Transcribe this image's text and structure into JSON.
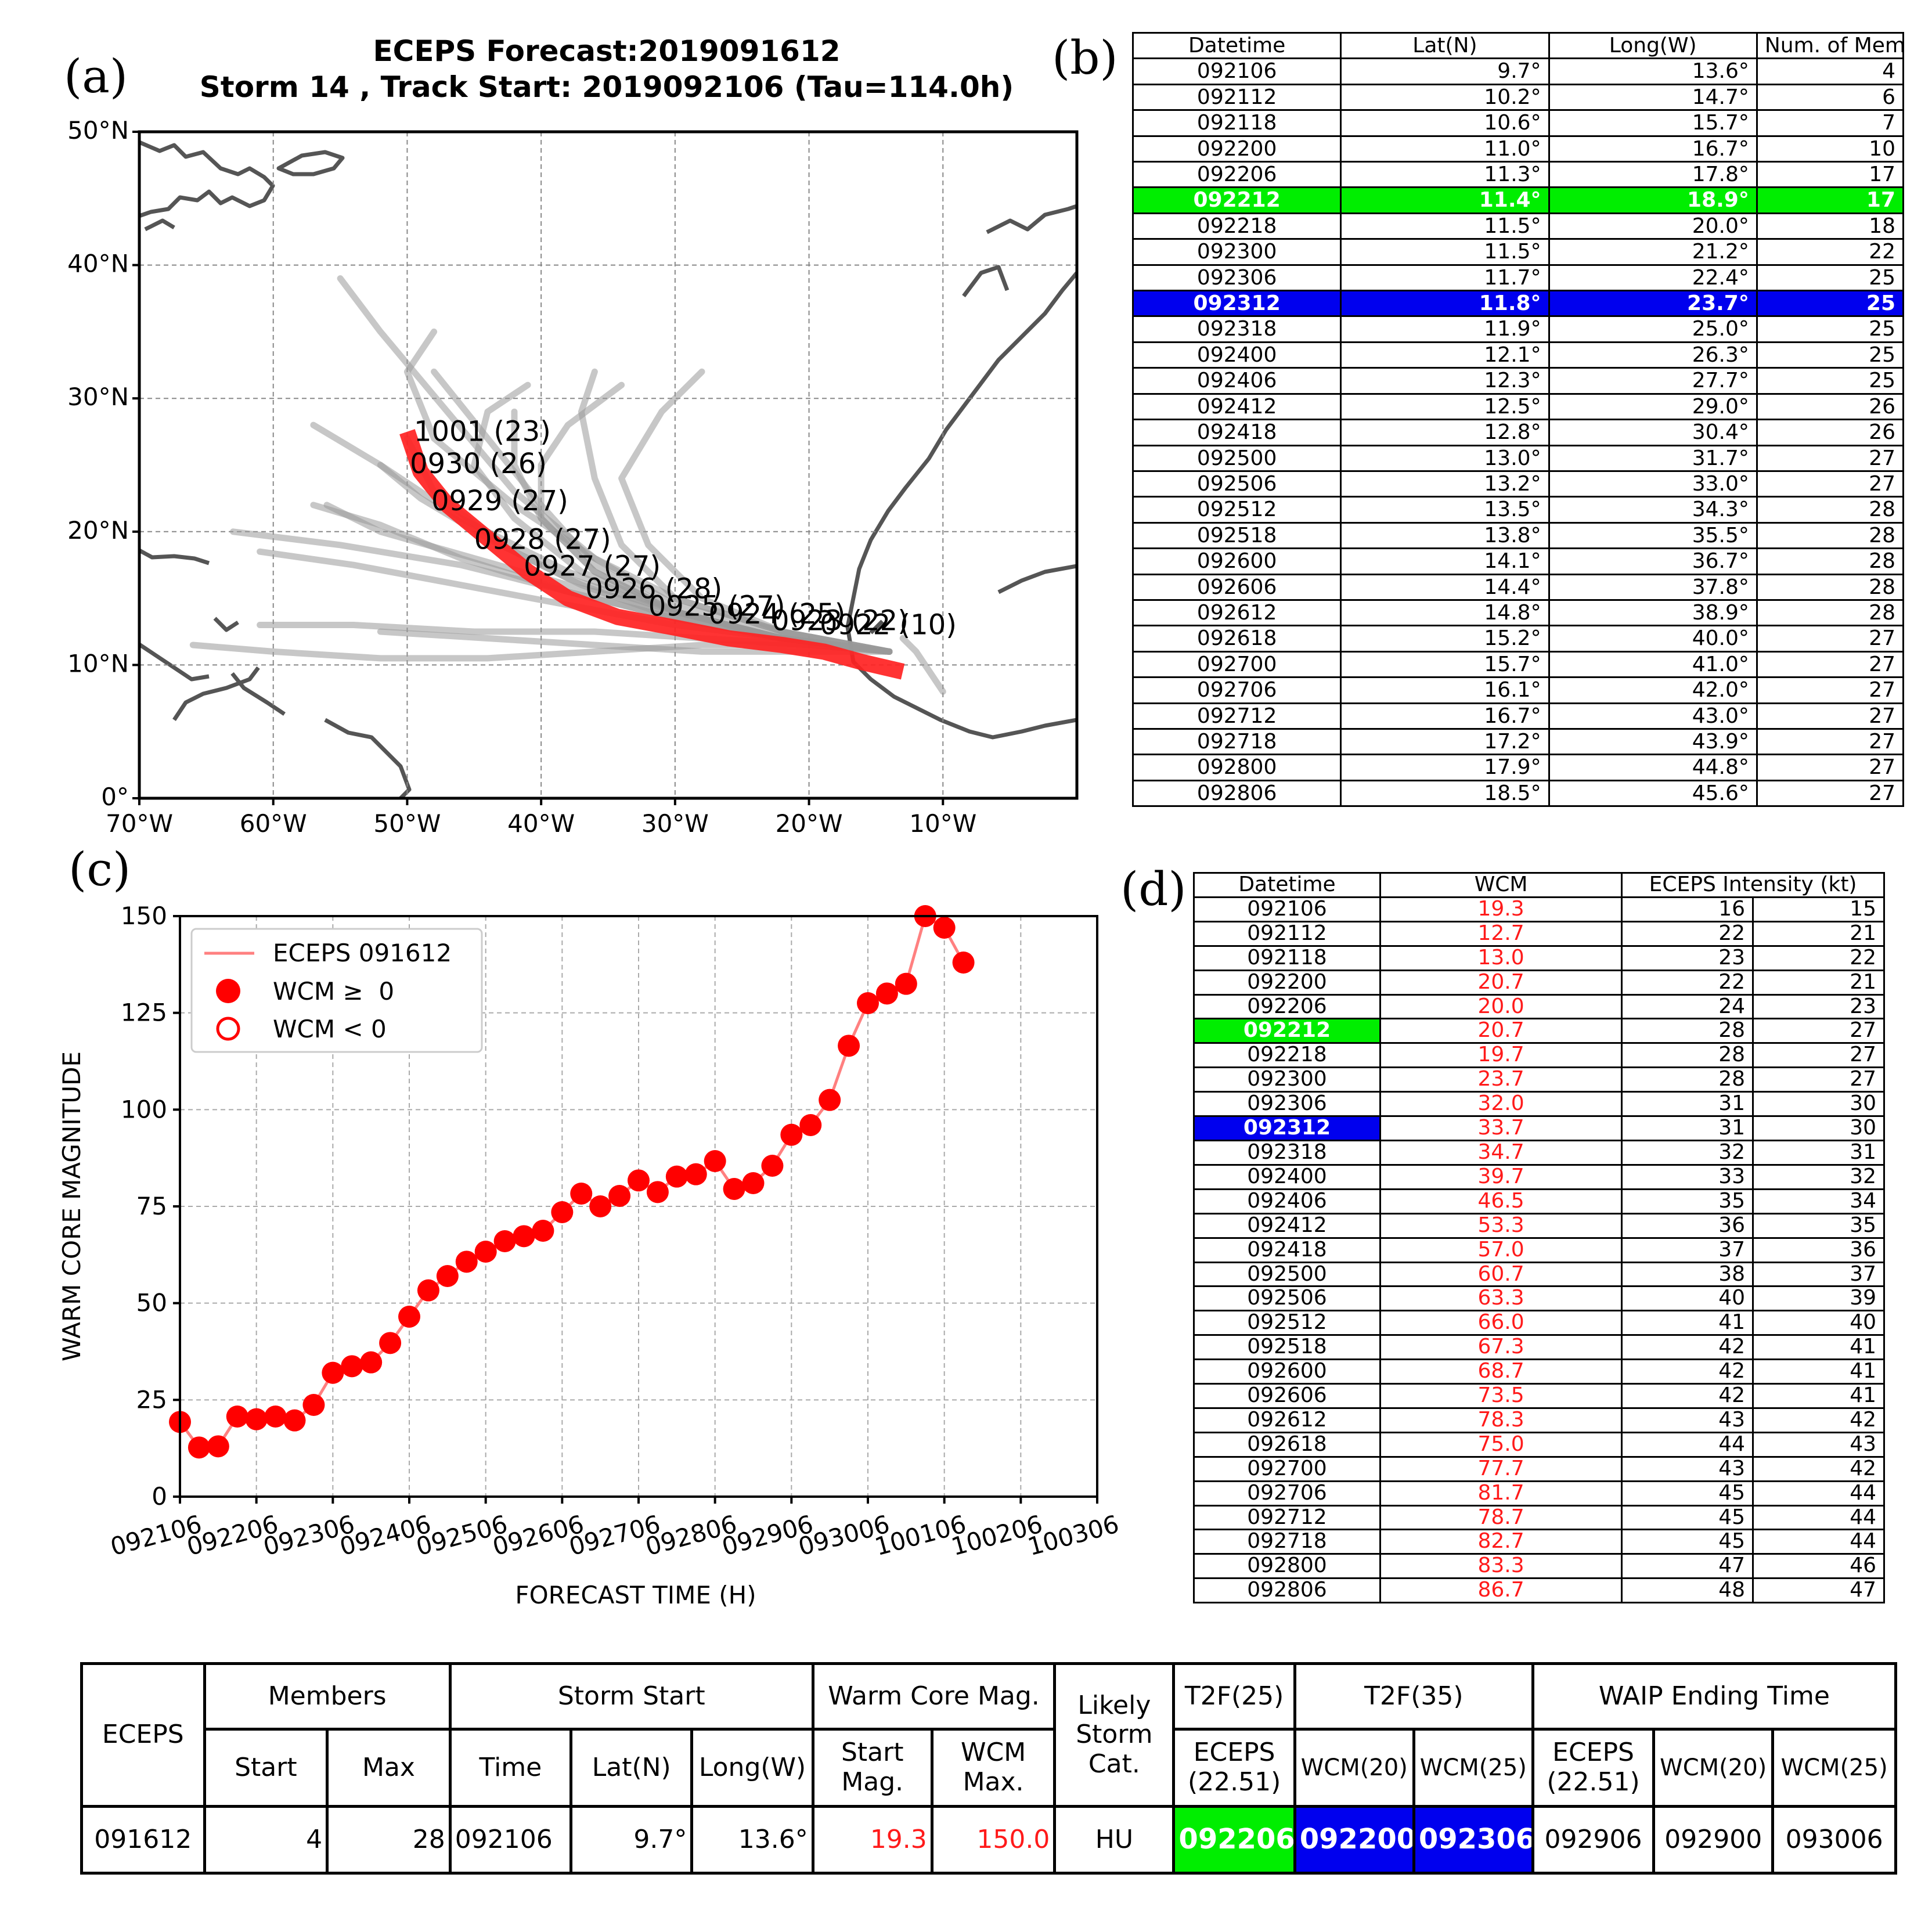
{
  "panel_labels": {
    "a": "(a)",
    "b": "(b)",
    "c": "(c)",
    "d": "(d)"
  },
  "chart_data": [
    {
      "type": "map",
      "panel": "a",
      "title": "ECEPS Forecast:2019091612",
      "subtitle": "Storm 14 , Track Start: 2019092106 (Tau=114.0h)",
      "x_ticks": [
        "70°W",
        "60°W",
        "50°W",
        "40°W",
        "30°W",
        "20°W",
        "10°W"
      ],
      "y_ticks": [
        "0°",
        "10°N",
        "20°N",
        "30°N",
        "40°N",
        "50°N"
      ],
      "lon_range": [
        -70,
        0
      ],
      "lat_range": [
        0,
        50
      ],
      "mean_track": [
        [
          -13,
          9.5
        ],
        [
          -16,
          10.2
        ],
        [
          -18.9,
          11.0
        ],
        [
          -22,
          11.5
        ],
        [
          -26,
          12.0
        ],
        [
          -30,
          12.8
        ],
        [
          -34.3,
          13.6
        ],
        [
          -38,
          15.0
        ],
        [
          -41,
          17.0
        ],
        [
          -44,
          19.5
        ],
        [
          -47,
          22.0
        ],
        [
          -49,
          24.5
        ],
        [
          -49.5,
          26.0
        ],
        [
          -50,
          27.5
        ]
      ],
      "member_tracks": [
        [
          [
            -14,
            11
          ],
          [
            -20,
            11.5
          ],
          [
            -28,
            11.5
          ],
          [
            -36,
            11
          ],
          [
            -44,
            10.5
          ],
          [
            -52,
            10.5
          ],
          [
            -60,
            11
          ],
          [
            -66,
            11.5
          ]
        ],
        [
          [
            -14,
            11
          ],
          [
            -20,
            11.5
          ],
          [
            -28,
            12
          ],
          [
            -36,
            12.5
          ],
          [
            -45,
            12.5
          ],
          [
            -54,
            13
          ],
          [
            -61,
            13
          ]
        ],
        [
          [
            -14,
            11
          ],
          [
            -22,
            12
          ],
          [
            -30,
            13
          ],
          [
            -38,
            14.5
          ],
          [
            -46,
            16
          ],
          [
            -54,
            17.5
          ],
          [
            -61,
            18.5
          ]
        ],
        [
          [
            -14,
            11
          ],
          [
            -22,
            12
          ],
          [
            -30,
            13.5
          ],
          [
            -38,
            15.5
          ],
          [
            -46,
            18
          ],
          [
            -52,
            20.5
          ],
          [
            -57,
            22
          ]
        ],
        [
          [
            -14,
            11
          ],
          [
            -22,
            12
          ],
          [
            -30,
            14
          ],
          [
            -38,
            16.5
          ],
          [
            -44,
            19.5
          ],
          [
            -49,
            22.5
          ],
          [
            -52,
            25
          ]
        ],
        [
          [
            -14,
            11
          ],
          [
            -22,
            12
          ],
          [
            -30,
            14
          ],
          [
            -36,
            17
          ],
          [
            -40,
            21
          ],
          [
            -42,
            25
          ],
          [
            -42,
            29
          ]
        ],
        [
          [
            -14,
            11
          ],
          [
            -22,
            12
          ],
          [
            -30,
            14
          ],
          [
            -36,
            17.5
          ],
          [
            -40,
            22
          ],
          [
            -44,
            27
          ],
          [
            -48,
            32
          ]
        ],
        [
          [
            -14,
            11
          ],
          [
            -22,
            12.5
          ],
          [
            -30,
            14.5
          ],
          [
            -36,
            18
          ],
          [
            -42,
            23
          ],
          [
            -47,
            29
          ],
          [
            -52,
            35
          ],
          [
            -55,
            39
          ]
        ],
        [
          [
            -14,
            11
          ],
          [
            -22,
            12.5
          ],
          [
            -30,
            15
          ],
          [
            -34,
            19
          ],
          [
            -36,
            24
          ],
          [
            -37,
            29
          ],
          [
            -36,
            32
          ]
        ],
        [
          [
            -14,
            11
          ],
          [
            -22,
            12.5
          ],
          [
            -28,
            15
          ],
          [
            -32,
            19
          ],
          [
            -34,
            24
          ],
          [
            -31,
            29
          ],
          [
            -28,
            32
          ]
        ],
        [
          [
            -14,
            11
          ],
          [
            -22,
            12.5
          ],
          [
            -30,
            15
          ],
          [
            -36,
            18
          ],
          [
            -42,
            22
          ],
          [
            -48,
            27
          ],
          [
            -50,
            32
          ],
          [
            -48,
            35
          ]
        ],
        [
          [
            -14,
            11
          ],
          [
            -22,
            12
          ],
          [
            -30,
            14
          ],
          [
            -38,
            16
          ],
          [
            -45,
            18
          ],
          [
            -52,
            20
          ],
          [
            -56,
            22
          ]
        ],
        [
          [
            -14,
            11
          ],
          [
            -22,
            12
          ],
          [
            -30,
            14
          ],
          [
            -38,
            17
          ],
          [
            -46,
            21
          ],
          [
            -52,
            25
          ],
          [
            -57,
            28
          ]
        ],
        [
          [
            -14,
            11
          ],
          [
            -22,
            12
          ],
          [
            -30,
            13.5
          ],
          [
            -38,
            15.5
          ],
          [
            -46,
            17.5
          ],
          [
            -55,
            19
          ],
          [
            -63,
            20
          ]
        ],
        [
          [
            -14,
            11
          ],
          [
            -22,
            12
          ],
          [
            -30,
            14
          ],
          [
            -37,
            17
          ],
          [
            -42,
            21
          ],
          [
            -45,
            25
          ],
          [
            -44,
            29
          ],
          [
            -41,
            31
          ]
        ],
        [
          [
            -14,
            11
          ],
          [
            -22,
            12
          ],
          [
            -30,
            14
          ],
          [
            -36,
            17
          ],
          [
            -40,
            21
          ],
          [
            -40,
            25
          ],
          [
            -38,
            28
          ],
          [
            -34,
            31
          ]
        ],
        [
          [
            -14,
            11
          ],
          [
            -22,
            12
          ],
          [
            -30,
            13.5
          ],
          [
            -37,
            16
          ],
          [
            -43,
            19
          ],
          [
            -48,
            23
          ],
          [
            -50,
            27
          ]
        ],
        [
          [
            -14,
            11
          ],
          [
            -20,
            11
          ],
          [
            -28,
            11
          ],
          [
            -36,
            11.5
          ],
          [
            -44,
            12
          ],
          [
            -52,
            12.5
          ]
        ],
        [
          [
            -13,
            12
          ],
          [
            -12,
            11
          ],
          [
            -10,
            8
          ]
        ]
      ],
      "track_labels": [
        "1001 (23)",
        "0930 (26)",
        "0929 (27)",
        "0928 (27)",
        "0927 (27)",
        "0926 (28)",
        "0925 (27)",
        "0924 (25)",
        "0923 (22)",
        "0922 (10)"
      ]
    },
    {
      "type": "line",
      "panel": "c",
      "ylabel": "WARM CORE MAGNITUDE",
      "xlabel": "FORECAST TIME (H)",
      "ylim": [
        0,
        150
      ],
      "y_ticks": [
        "0",
        "25",
        "50",
        "75",
        "100",
        "125",
        "150"
      ],
      "x_ticks": [
        "092106",
        "092206",
        "092306",
        "092406",
        "092506",
        "092606",
        "092706",
        "092806",
        "092906",
        "093006",
        "100106",
        "100206",
        "100306"
      ],
      "legend": [
        "ECEPS 091612",
        "WCM ≥  0",
        "WCM < 0"
      ],
      "legend_position": "top-left",
      "series_name": "ECEPS 091612",
      "values": [
        19.3,
        12.7,
        13.0,
        20.7,
        20.0,
        20.7,
        19.7,
        23.7,
        32.0,
        33.7,
        34.7,
        39.7,
        46.5,
        53.3,
        57.0,
        60.7,
        63.3,
        66.0,
        67.3,
        68.7,
        73.5,
        78.3,
        75.0,
        77.7,
        81.7,
        78.7,
        82.7,
        83.3,
        86.7,
        79.5,
        81.0,
        85.5,
        93.5,
        96.0,
        102.5,
        116.5,
        127.5,
        130.0,
        132.5,
        150.0,
        147.0,
        138.0
      ]
    }
  ],
  "table_b": {
    "headers": [
      "Datetime",
      "Lat(N)",
      "Long(W)",
      "Num. of Members"
    ],
    "rows": [
      [
        "092106",
        "9.7°",
        "13.6°",
        "4"
      ],
      [
        "092112",
        "10.2°",
        "14.7°",
        "6"
      ],
      [
        "092118",
        "10.6°",
        "15.7°",
        "7"
      ],
      [
        "092200",
        "11.0°",
        "16.7°",
        "10"
      ],
      [
        "092206",
        "11.3°",
        "17.8°",
        "17"
      ],
      [
        "092212",
        "11.4°",
        "18.9°",
        "17"
      ],
      [
        "092218",
        "11.5°",
        "20.0°",
        "18"
      ],
      [
        "092300",
        "11.5°",
        "21.2°",
        "22"
      ],
      [
        "092306",
        "11.7°",
        "22.4°",
        "25"
      ],
      [
        "092312",
        "11.8°",
        "23.7°",
        "25"
      ],
      [
        "092318",
        "11.9°",
        "25.0°",
        "25"
      ],
      [
        "092400",
        "12.1°",
        "26.3°",
        "25"
      ],
      [
        "092406",
        "12.3°",
        "27.7°",
        "25"
      ],
      [
        "092412",
        "12.5°",
        "29.0°",
        "26"
      ],
      [
        "092418",
        "12.8°",
        "30.4°",
        "26"
      ],
      [
        "092500",
        "13.0°",
        "31.7°",
        "27"
      ],
      [
        "092506",
        "13.2°",
        "33.0°",
        "27"
      ],
      [
        "092512",
        "13.5°",
        "34.3°",
        "28"
      ],
      [
        "092518",
        "13.8°",
        "35.5°",
        "28"
      ],
      [
        "092600",
        "14.1°",
        "36.7°",
        "28"
      ],
      [
        "092606",
        "14.4°",
        "37.8°",
        "28"
      ],
      [
        "092612",
        "14.8°",
        "38.9°",
        "28"
      ],
      [
        "092618",
        "15.2°",
        "40.0°",
        "27"
      ],
      [
        "092700",
        "15.7°",
        "41.0°",
        "27"
      ],
      [
        "092706",
        "16.1°",
        "42.0°",
        "27"
      ],
      [
        "092712",
        "16.7°",
        "43.0°",
        "27"
      ],
      [
        "092718",
        "17.2°",
        "43.9°",
        "27"
      ],
      [
        "092800",
        "17.9°",
        "44.8°",
        "27"
      ],
      [
        "092806",
        "18.5°",
        "45.6°",
        "27"
      ]
    ],
    "highlight_green_row": "092212",
    "highlight_blue_row": "092312",
    "green_color": "#00ee00",
    "blue_color": "#0000ee"
  },
  "table_d": {
    "headers": [
      "Datetime",
      "WCM",
      "ECEPS Intensity (kt)"
    ],
    "rows": [
      [
        "092106",
        "19.3",
        "16",
        "15"
      ],
      [
        "092112",
        "12.7",
        "22",
        "21"
      ],
      [
        "092118",
        "13.0",
        "23",
        "22"
      ],
      [
        "092200",
        "20.7",
        "22",
        "21"
      ],
      [
        "092206",
        "20.0",
        "24",
        "23"
      ],
      [
        "092212",
        "20.7",
        "28",
        "27"
      ],
      [
        "092218",
        "19.7",
        "28",
        "27"
      ],
      [
        "092300",
        "23.7",
        "28",
        "27"
      ],
      [
        "092306",
        "32.0",
        "31",
        "30"
      ],
      [
        "092312",
        "33.7",
        "31",
        "30"
      ],
      [
        "092318",
        "34.7",
        "32",
        "31"
      ],
      [
        "092400",
        "39.7",
        "33",
        "32"
      ],
      [
        "092406",
        "46.5",
        "35",
        "34"
      ],
      [
        "092412",
        "53.3",
        "36",
        "35"
      ],
      [
        "092418",
        "57.0",
        "37",
        "36"
      ],
      [
        "092500",
        "60.7",
        "38",
        "37"
      ],
      [
        "092506",
        "63.3",
        "40",
        "39"
      ],
      [
        "092512",
        "66.0",
        "41",
        "40"
      ],
      [
        "092518",
        "67.3",
        "42",
        "41"
      ],
      [
        "092600",
        "68.7",
        "42",
        "41"
      ],
      [
        "092606",
        "73.5",
        "42",
        "41"
      ],
      [
        "092612",
        "78.3",
        "43",
        "42"
      ],
      [
        "092618",
        "75.0",
        "44",
        "43"
      ],
      [
        "092700",
        "77.7",
        "43",
        "42"
      ],
      [
        "092706",
        "81.7",
        "45",
        "44"
      ],
      [
        "092712",
        "78.7",
        "45",
        "44"
      ],
      [
        "092718",
        "82.7",
        "45",
        "44"
      ],
      [
        "092800",
        "83.3",
        "47",
        "46"
      ],
      [
        "092806",
        "86.7",
        "48",
        "47"
      ]
    ],
    "highlight_green_row": "092212",
    "highlight_blue_row": "092312",
    "wcm_color": "#ff1a1a"
  },
  "summary": {
    "model": "ECEPS",
    "members_header": "Members",
    "members_start_label": "Start",
    "members_max_label": "Max",
    "storm_start_header": "Storm Start",
    "time_label": "Time",
    "lat_label": "Lat(N)",
    "long_label": "Long(W)",
    "warm_core_header": "Warm Core Mag.",
    "start_mag_label": "Start Mag.",
    "wcm_max_label": "WCM Max.",
    "likely_storm_cat_label": "Likely Storm Cat.",
    "t2f25_header": "T2F(25)",
    "t2f35_header": "T2F(35)",
    "waip_header": "WAIP Ending Time",
    "eceps_2251_label": "ECEPS (22.51)",
    "wcm20_label": "WCM(20)",
    "wcm25_label": "WCM(25)",
    "values": {
      "forecast": "091612",
      "members_start": "4",
      "members_max": "28",
      "time": "092106",
      "lat": "9.7°",
      "long": "13.6°",
      "start_mag": "19.3",
      "wcm_max": "150.0",
      "storm_cat": "HU",
      "t2f25_eceps": "092206",
      "t2f35_wcm20": "092200",
      "t2f35_wcm25": "092306",
      "waip_eceps": "092906",
      "waip_wcm20": "092900",
      "waip_wcm25": "093006"
    }
  }
}
